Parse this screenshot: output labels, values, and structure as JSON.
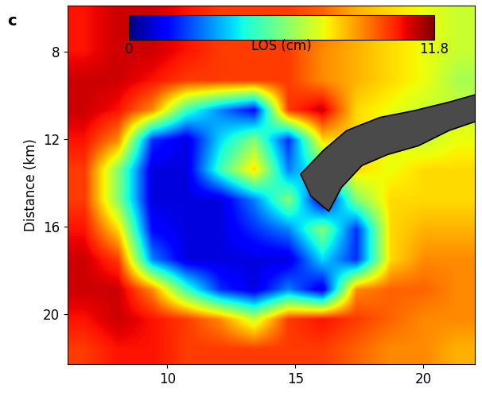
{
  "chart_data": {
    "type": "heatmap",
    "title": "c",
    "ylabel": "Distance (km)",
    "xlim": [
      6.1,
      22.0
    ],
    "ylim": [
      22.3,
      5.9
    ],
    "xticks": [
      10,
      15,
      20
    ],
    "yticks": [
      8,
      12,
      16,
      20
    ],
    "tick_labels": true,
    "cells": [
      [
        10.5,
        11,
        11,
        10.5,
        10,
        10,
        10,
        9.5,
        8.5,
        8,
        7.5,
        7
      ],
      [
        10.5,
        11,
        11,
        10.5,
        10,
        10,
        10,
        9,
        8.5,
        8,
        7.5,
        7
      ],
      [
        11,
        11,
        10.5,
        10,
        10,
        10,
        10,
        9,
        8.5,
        8,
        7.5,
        6.5
      ],
      [
        11,
        10.5,
        9,
        5,
        3,
        1.5,
        10,
        11,
        8,
        7.5,
        7,
        7
      ],
      [
        10.5,
        9,
        2,
        1,
        4,
        6,
        2,
        8,
        8,
        7.5,
        7,
        7.5
      ],
      [
        10,
        6,
        1,
        1,
        5,
        8,
        3,
        5,
        8,
        7.5,
        8,
        8
      ],
      [
        10,
        6,
        1,
        1,
        1,
        3,
        6,
        1,
        6,
        8,
        8,
        8
      ],
      [
        10.5,
        8,
        1.5,
        1,
        1,
        2,
        3,
        6,
        2,
        8,
        8.5,
        8.5
      ],
      [
        11,
        10,
        3,
        1,
        1,
        1,
        1,
        4,
        2,
        8,
        9,
        9
      ],
      [
        11,
        11,
        9,
        5,
        2,
        1,
        3,
        1,
        9,
        9.5,
        9.5,
        9
      ],
      [
        10.5,
        11,
        10.5,
        10,
        9,
        7,
        10,
        10.5,
        10,
        9.5,
        9,
        9
      ],
      [
        10,
        10.5,
        10.5,
        10,
        10,
        10,
        10,
        10,
        9.5,
        9,
        9,
        8.5
      ]
    ],
    "colorbar": {
      "label": "LOS (cm)",
      "range": [
        0,
        11.8
      ],
      "ticks": [
        0,
        11.8
      ]
    }
  }
}
